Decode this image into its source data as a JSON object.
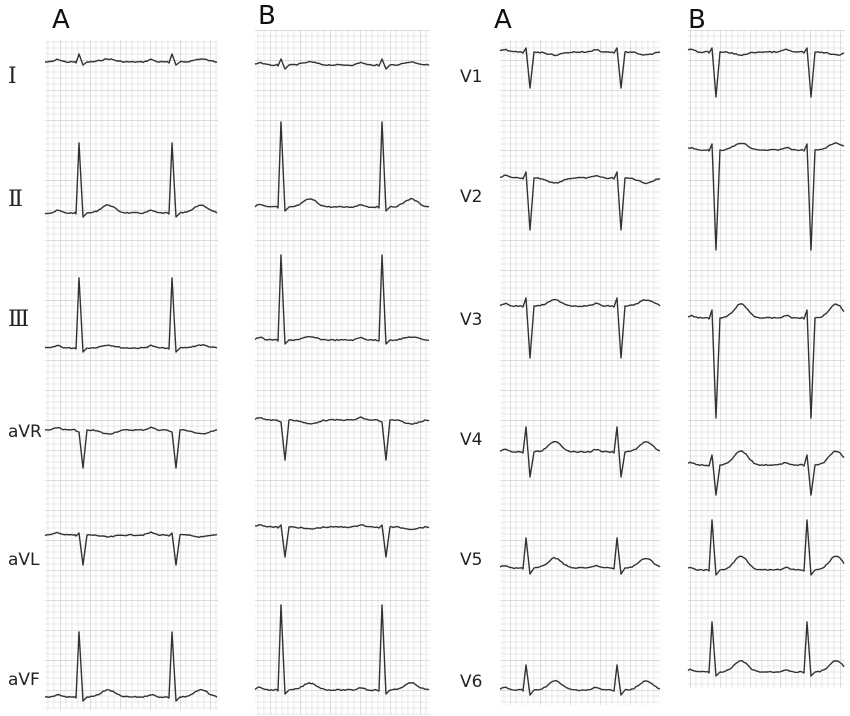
{
  "columns": [
    {
      "header": "A",
      "leads": [
        "Ⅰ",
        "Ⅱ",
        "Ⅲ",
        "aVR",
        "aVL",
        "aVF"
      ]
    },
    {
      "header": "B"
    },
    {
      "header": "A",
      "leads": [
        "V1",
        "V2",
        "V3",
        "V4",
        "V5",
        "V6"
      ]
    },
    {
      "header": "B"
    }
  ]
}
